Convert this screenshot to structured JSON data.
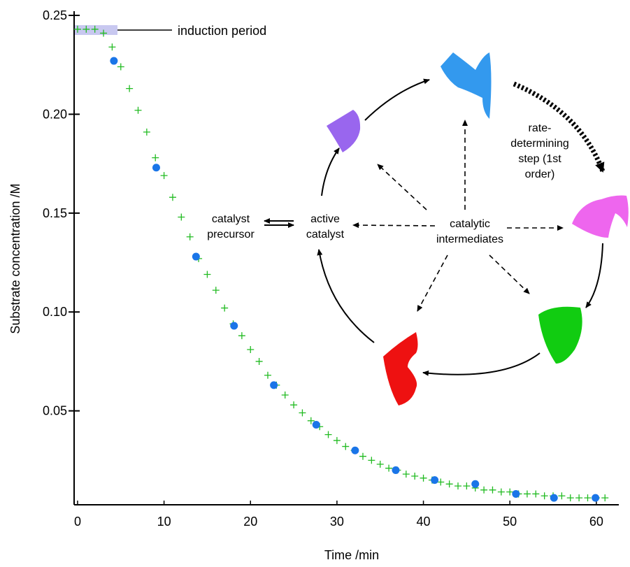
{
  "chart_data": {
    "type": "scatter",
    "xlabel": "Time /min",
    "ylabel": "Substrate concentration /M",
    "xlim": [
      -0.4,
      62.6
    ],
    "xticks": [
      0,
      10,
      20,
      30,
      40,
      50,
      60
    ],
    "ylim": [
      0.0025,
      0.25
    ],
    "yticks": [
      0.05,
      {
        "value": 0.1,
        "label": "0.10"
      },
      0.15,
      {
        "value": 0.2,
        "label": "0.20"
      },
      0.25
    ],
    "grid": false,
    "annotation": "induction period",
    "series": [
      {
        "marker": "plus",
        "color": "#22bb22",
        "x": [
          0,
          1,
          2,
          3,
          4,
          5,
          6,
          7,
          8,
          9,
          10,
          11,
          12,
          13,
          14,
          15,
          16,
          17,
          18,
          19,
          20,
          21,
          22,
          23,
          24,
          25,
          26,
          27,
          28,
          29,
          30,
          31,
          32,
          33,
          34,
          35,
          36,
          37,
          38,
          39,
          40,
          41,
          42,
          43,
          44,
          45,
          46,
          47,
          48,
          49,
          50,
          51,
          52,
          53,
          54,
          55,
          56,
          57,
          58,
          59,
          60,
          61
        ],
        "values": [
          0.243,
          0.243,
          0.243,
          0.241,
          0.234,
          0.224,
          0.213,
          0.202,
          0.191,
          0.178,
          0.169,
          0.158,
          0.148,
          0.138,
          0.127,
          0.119,
          0.111,
          0.102,
          0.094,
          0.088,
          0.081,
          0.075,
          0.068,
          0.063,
          0.058,
          0.053,
          0.049,
          0.045,
          0.042,
          0.038,
          0.035,
          0.032,
          0.03,
          0.027,
          0.025,
          0.023,
          0.021,
          0.02,
          0.018,
          0.017,
          0.016,
          0.015,
          0.014,
          0.013,
          0.012,
          0.012,
          0.011,
          0.01,
          0.01,
          0.009,
          0.009,
          0.008,
          0.008,
          0.008,
          0.007,
          0.007,
          0.007,
          0.006,
          0.006,
          0.006,
          0.006,
          0.006
        ]
      },
      {
        "marker": "dot",
        "color": "#1a75e8",
        "x": [
          4.2,
          9.1,
          13.7,
          18.1,
          22.7,
          27.6,
          32.1,
          36.8,
          41.3,
          46.0,
          50.7,
          55.1,
          59.9
        ],
        "values": [
          0.227,
          0.173,
          0.128,
          0.093,
          0.063,
          0.043,
          0.03,
          0.02,
          0.015,
          0.013,
          0.008,
          0.006,
          0.006
        ]
      }
    ]
  },
  "diagram": {
    "precursor": [
      "catalyst",
      "precursor"
    ],
    "active": [
      "active",
      "catalyst"
    ],
    "intermediates": [
      "catalytic",
      "intermediates"
    ],
    "rate_step": [
      "rate-",
      "determining",
      "step (1st",
      "order)"
    ]
  }
}
